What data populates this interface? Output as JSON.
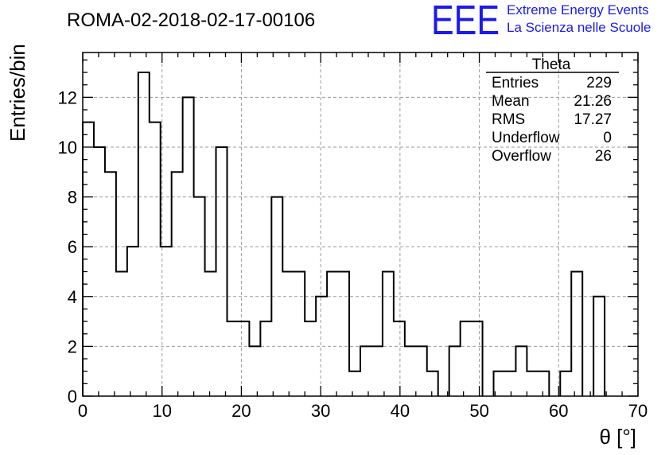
{
  "header": {
    "run_title": "ROMA-02-2018-02-17-00106",
    "logo": "EEE",
    "brand_line1": "Extreme Energy Events",
    "brand_line2": "La Scienza nelle Scuole"
  },
  "stats": {
    "name": "Theta",
    "rows": [
      {
        "label": "Entries",
        "value": "229"
      },
      {
        "label": "Mean",
        "value": "21.26"
      },
      {
        "label": "RMS",
        "value": "17.27"
      },
      {
        "label": "Underflow",
        "value": "0"
      },
      {
        "label": "Overflow",
        "value": "26"
      }
    ]
  },
  "chart_data": {
    "type": "bar",
    "style": "step-histogram",
    "xlabel": "θ [°]",
    "ylabel": "Entries/bin",
    "xlim": [
      0,
      70
    ],
    "ylim": [
      0,
      13.8
    ],
    "x_ticks": [
      0,
      10,
      20,
      30,
      40,
      50,
      60,
      70
    ],
    "y_ticks": [
      0,
      2,
      4,
      6,
      8,
      10,
      12
    ],
    "grid": true,
    "bin_width": 1.4,
    "values": [
      11,
      10,
      9,
      5,
      6,
      13,
      11,
      6,
      9,
      12,
      8,
      5,
      10,
      3,
      3,
      2,
      3,
      8,
      5,
      5,
      3,
      4,
      5,
      5,
      1,
      2,
      2,
      5,
      3,
      2,
      2,
      1,
      0,
      2,
      3,
      3,
      0,
      1,
      1,
      2,
      1,
      1,
      0,
      1,
      5,
      0,
      4,
      0,
      0,
      0
    ],
    "line_color": "#000000",
    "grid_color": "#9a9a9a"
  }
}
